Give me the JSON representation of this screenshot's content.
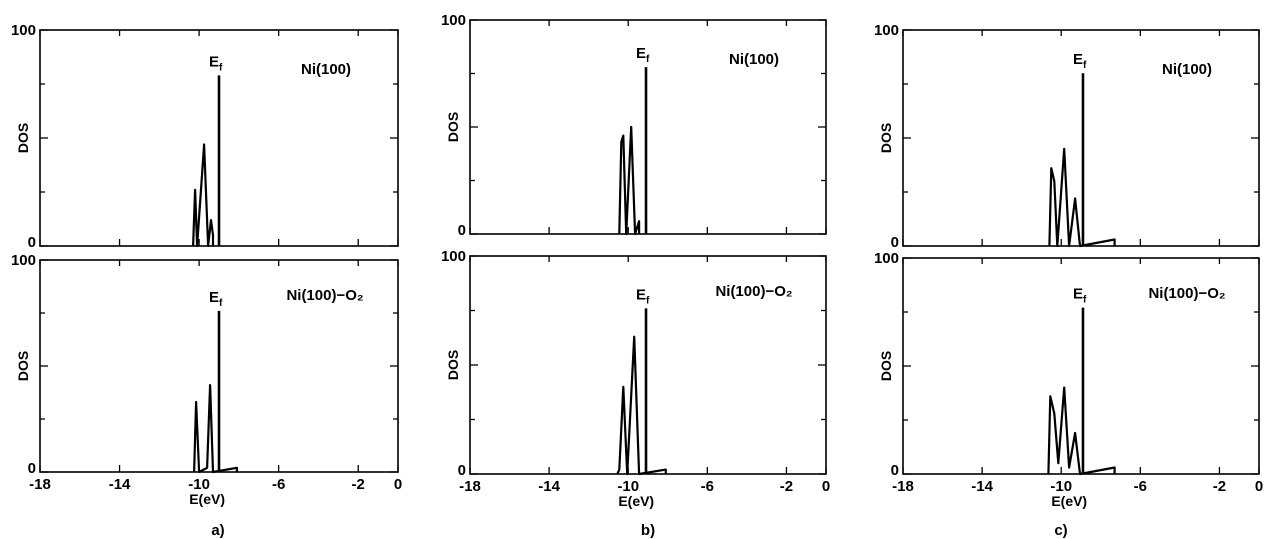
{
  "chart_data": [
    {
      "id": "a-top",
      "type": "line",
      "title": "Ni(100)",
      "ylabel": "DOS",
      "xlabel": "",
      "xlim": [
        -18,
        0
      ],
      "ylim": [
        0,
        100
      ],
      "fermi_label": "Ef",
      "fermi_energy": -9.0,
      "fermi_height": 79,
      "x_ticks": [],
      "y_ticks": [
        "0",
        "100"
      ],
      "peaks": [
        [
          -10.3,
          0,
          0
        ],
        [
          -10.2,
          26,
          20
        ],
        [
          -10.1,
          0,
          0
        ],
        [
          -9.75,
          47,
          45
        ],
        [
          -9.55,
          0,
          0
        ],
        [
          -9.4,
          12,
          10
        ],
        [
          -9.3,
          5,
          0
        ]
      ]
    },
    {
      "id": "a-bottom",
      "type": "line",
      "title": "Ni(100)−O₂",
      "ylabel": "DOS",
      "xlabel": "E(eV)",
      "xlim": [
        -18,
        0
      ],
      "ylim": [
        0,
        100
      ],
      "fermi_label": "Ef",
      "fermi_energy": -9.0,
      "fermi_height": 76,
      "x_ticks": [
        "-18",
        "-14",
        "-10",
        "-6",
        "-2",
        "0"
      ],
      "y_ticks": [
        "0",
        "100"
      ],
      "peaks": [
        [
          -10.25,
          0,
          0
        ],
        [
          -10.15,
          33,
          28
        ],
        [
          -10.0,
          0,
          0
        ],
        [
          -9.6,
          2,
          2
        ],
        [
          -9.45,
          41,
          38
        ],
        [
          -9.3,
          0,
          0
        ],
        [
          -8.1,
          2,
          0
        ]
      ]
    },
    {
      "id": "b-top",
      "type": "line",
      "title": "Ni(100)",
      "ylabel": "DOS",
      "xlabel": "",
      "xlim": [
        -18,
        0
      ],
      "ylim": [
        0,
        100
      ],
      "fermi_label": "Ef",
      "fermi_energy": -9.1,
      "fermi_height": 78,
      "x_ticks": [],
      "y_ticks": [
        "0",
        "100"
      ],
      "peaks": [
        [
          -10.45,
          0,
          0
        ],
        [
          -10.35,
          43,
          38
        ],
        [
          -10.25,
          46,
          44
        ],
        [
          -10.1,
          0,
          0
        ],
        [
          -9.85,
          50,
          46
        ],
        [
          -9.65,
          0,
          0
        ],
        [
          -9.45,
          6,
          0
        ]
      ]
    },
    {
      "id": "b-bottom",
      "type": "line",
      "title": "Ni(100)−O₂",
      "ylabel": "DOS",
      "xlabel": "E(eV)",
      "xlim": [
        -18,
        0
      ],
      "ylim": [
        0,
        100
      ],
      "fermi_label": "Ef",
      "fermi_energy": -9.1,
      "fermi_height": 76,
      "x_ticks": [
        "-18",
        "-14",
        "-10",
        "-6",
        "-2",
        "0"
      ],
      "y_ticks": [
        "0",
        "100"
      ],
      "peaks": [
        [
          -10.55,
          0,
          0
        ],
        [
          -10.45,
          2,
          2
        ],
        [
          -10.25,
          40,
          36
        ],
        [
          -10.05,
          0,
          0
        ],
        [
          -9.7,
          63,
          58
        ],
        [
          -9.45,
          0,
          0
        ],
        [
          -8.1,
          2,
          0
        ]
      ]
    },
    {
      "id": "c-top",
      "type": "line",
      "title": "Ni(100)",
      "ylabel": "DOS",
      "xlabel": "",
      "xlim": [
        -18,
        0
      ],
      "ylim": [
        0,
        100
      ],
      "fermi_label": "Ef",
      "fermi_energy": -8.9,
      "fermi_height": 80,
      "x_ticks": [],
      "y_ticks": [
        "0",
        "100"
      ],
      "peaks": [
        [
          -10.6,
          0,
          0
        ],
        [
          -10.5,
          36,
          32
        ],
        [
          -10.35,
          30,
          26
        ],
        [
          -10.2,
          0,
          0
        ],
        [
          -9.85,
          45,
          42
        ],
        [
          -9.6,
          0,
          0
        ],
        [
          -9.3,
          22,
          20
        ],
        [
          -9.05,
          0,
          0
        ],
        [
          -7.3,
          3,
          0
        ]
      ]
    },
    {
      "id": "c-bottom",
      "type": "line",
      "title": "Ni(100)−O₂",
      "ylabel": "DOS",
      "xlabel": "E(eV)",
      "xlim": [
        -18,
        0
      ],
      "ylim": [
        0,
        100
      ],
      "fermi_label": "Ef",
      "fermi_energy": -8.9,
      "fermi_height": 77,
      "x_ticks": [
        "-18",
        "-14",
        "-10",
        "-6",
        "-2",
        "0"
      ],
      "y_ticks": [
        "0",
        "100"
      ],
      "peaks": [
        [
          -10.65,
          0,
          0
        ],
        [
          -10.55,
          36,
          32
        ],
        [
          -10.35,
          28,
          24
        ],
        [
          -10.15,
          5,
          0
        ],
        [
          -9.85,
          40,
          36
        ],
        [
          -9.6,
          3,
          0
        ],
        [
          -9.3,
          19,
          16
        ],
        [
          -9.05,
          0,
          0
        ],
        [
          -7.3,
          3,
          0
        ]
      ]
    }
  ],
  "subfigure_labels": [
    "a)",
    "b)",
    "c)"
  ]
}
